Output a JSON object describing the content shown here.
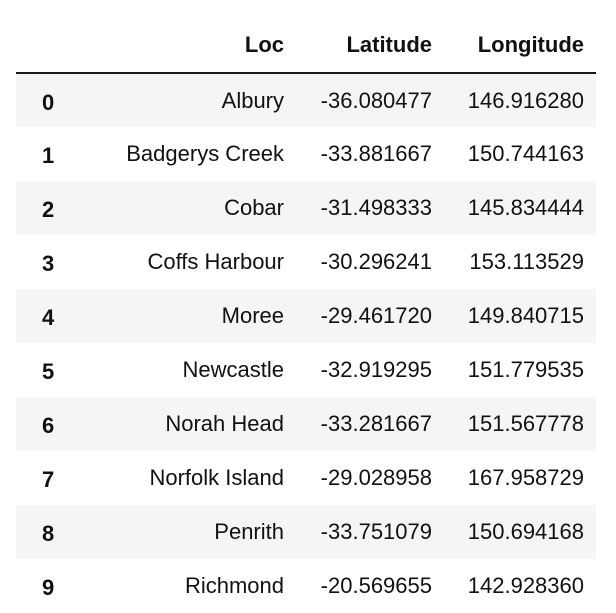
{
  "table": {
    "columns": [
      "",
      "Loc",
      "Latitude",
      "Longitude"
    ],
    "rows": [
      {
        "index": "0",
        "loc": "Albury",
        "latitude": "-36.080477",
        "longitude": "146.916280"
      },
      {
        "index": "1",
        "loc": "Badgerys Creek",
        "latitude": "-33.881667",
        "longitude": "150.744163"
      },
      {
        "index": "2",
        "loc": "Cobar",
        "latitude": "-31.498333",
        "longitude": "145.834444"
      },
      {
        "index": "3",
        "loc": "Coffs Harbour",
        "latitude": "-30.296241",
        "longitude": "153.113529"
      },
      {
        "index": "4",
        "loc": "Moree",
        "latitude": "-29.461720",
        "longitude": "149.840715"
      },
      {
        "index": "5",
        "loc": "Newcastle",
        "latitude": "-32.919295",
        "longitude": "151.779535"
      },
      {
        "index": "6",
        "loc": "Norah Head",
        "latitude": "-33.281667",
        "longitude": "151.567778"
      },
      {
        "index": "7",
        "loc": "Norfolk Island",
        "latitude": "-29.028958",
        "longitude": "167.958729"
      },
      {
        "index": "8",
        "loc": "Penrith",
        "latitude": "-33.751079",
        "longitude": "150.694168"
      },
      {
        "index": "9",
        "loc": "Richmond",
        "latitude": "-20.569655",
        "longitude": "142.928360"
      }
    ]
  }
}
